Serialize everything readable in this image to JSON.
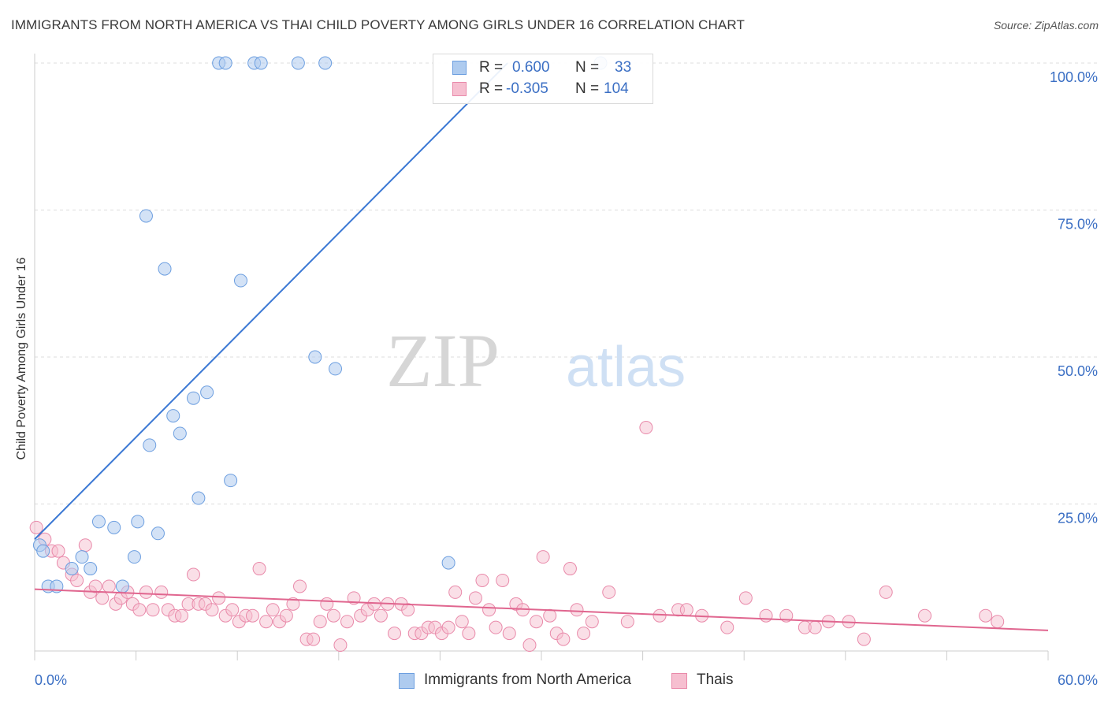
{
  "title": "IMMIGRANTS FROM NORTH AMERICA VS THAI CHILD POVERTY AMONG GIRLS UNDER 16 CORRELATION CHART",
  "source": "Source: ZipAtlas.com",
  "watermark": {
    "zip": "ZIP",
    "atlas": "atlas"
  },
  "colors": {
    "blue_fill": "#aecbef",
    "blue_stroke": "#6d9fe0",
    "blue_line": "#3b78d4",
    "pink_fill": "#f6bfd0",
    "pink_stroke": "#e98aaa",
    "pink_line": "#e0668f",
    "axis_text": "#3b6fc4"
  },
  "legend": {
    "rows": [
      {
        "r_label": "R =",
        "r_value": "0.600",
        "n_label": "N =",
        "n_value": "33"
      },
      {
        "r_label": "R =",
        "r_value": "-0.305",
        "n_label": "N =",
        "n_value": "104"
      }
    ]
  },
  "bottom_legend": [
    "Immigrants from North America",
    "Thais"
  ],
  "chart_data": {
    "type": "scatter",
    "title": "IMMIGRANTS FROM NORTH AMERICA VS THAI CHILD POVERTY AMONG GIRLS UNDER 16 CORRELATION CHART",
    "xlabel": "",
    "ylabel": "Child Poverty Among Girls Under 16",
    "xlim": [
      0,
      60
    ],
    "ylim": [
      0,
      100
    ],
    "x_tick_labels": [
      "0.0%",
      "60.0%"
    ],
    "y_tick_labels": [
      "25.0%",
      "50.0%",
      "75.0%",
      "100.0%"
    ],
    "y_ticks": [
      25,
      50,
      75,
      100
    ],
    "grid": true,
    "legend_position": "top-center",
    "series": [
      {
        "name": "Immigrants from North America",
        "r": 0.6,
        "n": 33,
        "trend": {
          "x": [
            0,
            28
          ],
          "y": [
            19,
            100
          ]
        },
        "points": [
          [
            0.3,
            18
          ],
          [
            0.8,
            11
          ],
          [
            1.3,
            11
          ],
          [
            2.2,
            14
          ],
          [
            2.8,
            16
          ],
          [
            3.3,
            14
          ],
          [
            3.8,
            22
          ],
          [
            4.7,
            21
          ],
          [
            5.2,
            11
          ],
          [
            5.9,
            16
          ],
          [
            6.1,
            22
          ],
          [
            6.6,
            74
          ],
          [
            6.8,
            35
          ],
          [
            7.3,
            20
          ],
          [
            7.7,
            65
          ],
          [
            8.2,
            40
          ],
          [
            8.6,
            37
          ],
          [
            9.4,
            43
          ],
          [
            9.7,
            26
          ],
          [
            10.2,
            44
          ],
          [
            11.6,
            29
          ],
          [
            12.2,
            63
          ],
          [
            16.6,
            50
          ],
          [
            17.8,
            48
          ],
          [
            24.5,
            15
          ],
          [
            10.9,
            100
          ],
          [
            11.3,
            100
          ],
          [
            13.0,
            100
          ],
          [
            13.4,
            100
          ],
          [
            15.6,
            100
          ],
          [
            17.2,
            100
          ],
          [
            33.5,
            100
          ],
          [
            0.5,
            17
          ]
        ]
      },
      {
        "name": "Thais",
        "r": -0.305,
        "n": 104,
        "trend": {
          "x": [
            0,
            60
          ],
          "y": [
            10.5,
            3.5
          ]
        },
        "points": [
          [
            0.1,
            21
          ],
          [
            0.6,
            19
          ],
          [
            1.0,
            17
          ],
          [
            1.4,
            17
          ],
          [
            1.7,
            15
          ],
          [
            2.2,
            13
          ],
          [
            2.5,
            12
          ],
          [
            3.0,
            18
          ],
          [
            3.3,
            10
          ],
          [
            3.6,
            11
          ],
          [
            4.0,
            9
          ],
          [
            4.4,
            11
          ],
          [
            4.8,
            8
          ],
          [
            5.1,
            9
          ],
          [
            5.5,
            10
          ],
          [
            5.8,
            8
          ],
          [
            6.2,
            7
          ],
          [
            6.6,
            10
          ],
          [
            7.0,
            7
          ],
          [
            7.5,
            10
          ],
          [
            7.9,
            7
          ],
          [
            8.3,
            6
          ],
          [
            8.7,
            6
          ],
          [
            9.1,
            8
          ],
          [
            9.4,
            13
          ],
          [
            9.7,
            8
          ],
          [
            10.1,
            8
          ],
          [
            10.5,
            7
          ],
          [
            10.9,
            9
          ],
          [
            11.3,
            6
          ],
          [
            11.7,
            7
          ],
          [
            12.1,
            5
          ],
          [
            12.5,
            6
          ],
          [
            12.9,
            6
          ],
          [
            13.3,
            14
          ],
          [
            13.7,
            5
          ],
          [
            14.1,
            7
          ],
          [
            14.5,
            5
          ],
          [
            14.9,
            6
          ],
          [
            15.3,
            8
          ],
          [
            15.7,
            11
          ],
          [
            16.1,
            2
          ],
          [
            16.5,
            2
          ],
          [
            16.9,
            5
          ],
          [
            17.3,
            8
          ],
          [
            17.7,
            6
          ],
          [
            18.1,
            1
          ],
          [
            18.5,
            5
          ],
          [
            18.9,
            9
          ],
          [
            19.3,
            6
          ],
          [
            19.7,
            7
          ],
          [
            20.1,
            8
          ],
          [
            20.5,
            6
          ],
          [
            20.9,
            8
          ],
          [
            21.3,
            3
          ],
          [
            21.7,
            8
          ],
          [
            22.1,
            7
          ],
          [
            22.5,
            3
          ],
          [
            22.9,
            3
          ],
          [
            23.3,
            4
          ],
          [
            23.7,
            4
          ],
          [
            24.1,
            3
          ],
          [
            24.5,
            4
          ],
          [
            24.9,
            10
          ],
          [
            25.3,
            5
          ],
          [
            25.7,
            3
          ],
          [
            26.1,
            9
          ],
          [
            26.5,
            12
          ],
          [
            26.9,
            7
          ],
          [
            27.3,
            4
          ],
          [
            27.7,
            12
          ],
          [
            28.1,
            3
          ],
          [
            28.5,
            8
          ],
          [
            28.9,
            7
          ],
          [
            29.3,
            1
          ],
          [
            29.7,
            5
          ],
          [
            30.1,
            16
          ],
          [
            30.5,
            6
          ],
          [
            30.9,
            3
          ],
          [
            31.3,
            2
          ],
          [
            31.7,
            14
          ],
          [
            32.1,
            7
          ],
          [
            32.5,
            3
          ],
          [
            33.0,
            5
          ],
          [
            34.0,
            10
          ],
          [
            35.1,
            5
          ],
          [
            36.2,
            38
          ],
          [
            37.0,
            6
          ],
          [
            38.1,
            7
          ],
          [
            38.6,
            7
          ],
          [
            39.5,
            6
          ],
          [
            41.0,
            4
          ],
          [
            42.1,
            9
          ],
          [
            43.3,
            6
          ],
          [
            44.5,
            6
          ],
          [
            45.6,
            4
          ],
          [
            46.2,
            4
          ],
          [
            47.0,
            5
          ],
          [
            48.2,
            5
          ],
          [
            49.1,
            2
          ],
          [
            50.4,
            10
          ],
          [
            52.7,
            6
          ],
          [
            56.3,
            6
          ],
          [
            57.0,
            5
          ]
        ]
      }
    ]
  }
}
